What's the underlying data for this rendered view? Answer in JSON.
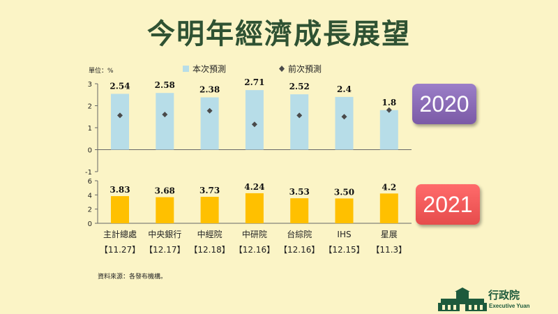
{
  "title": "今明年經濟成長展望",
  "unit_label": "單位：%",
  "source_note": "資料來源：各發布機構。",
  "logo": {
    "name": "行政院",
    "subtitle": "Executive Yuan"
  },
  "badges": {
    "y2020": "2020",
    "y2021": "2021"
  },
  "colors": {
    "bar2020": "#b7dde8",
    "bar2021": "#ffc000",
    "marker": "#4a4a4a",
    "title": "#2f5233"
  },
  "chart_data": [
    {
      "type": "bar",
      "year": "2020",
      "categories": [
        "主計總處",
        "中央銀行",
        "中經院",
        "中研院",
        "台綜院",
        "IHS",
        "星展"
      ],
      "dates": [
        "【11.27】",
        "【12.17】",
        "【12.18】",
        "【12.16】",
        "【12.16】",
        "【12.15】",
        "【11.3】"
      ],
      "series": [
        {
          "name": "本次預測",
          "values": [
            2.54,
            2.58,
            2.38,
            2.71,
            2.52,
            2.4,
            1.8
          ],
          "labels": [
            "2.54",
            "2.58",
            "2.38",
            "2.71",
            "2.52",
            "2.4",
            "1.8"
          ]
        },
        {
          "name": "前次預測",
          "values": [
            1.56,
            1.6,
            1.77,
            1.15,
            1.56,
            1.5,
            1.8
          ]
        }
      ],
      "yticks": [
        3,
        2,
        1,
        0,
        -1
      ],
      "ylim": [
        -1,
        3
      ],
      "legend_position": "top"
    },
    {
      "type": "bar",
      "year": "2021",
      "categories": [
        "主計總處",
        "中央銀行",
        "中經院",
        "中研院",
        "台綜院",
        "IHS",
        "星展"
      ],
      "series": [
        {
          "name": "本次預測",
          "values": [
            3.83,
            3.68,
            3.73,
            4.24,
            3.53,
            3.5,
            4.2
          ],
          "labels": [
            "3.83",
            "3.68",
            "3.73",
            "4.24",
            "3.53",
            "3.50",
            "4.2"
          ]
        }
      ],
      "yticks": [
        6,
        4,
        2,
        0
      ],
      "ylim": [
        0,
        6
      ]
    }
  ]
}
